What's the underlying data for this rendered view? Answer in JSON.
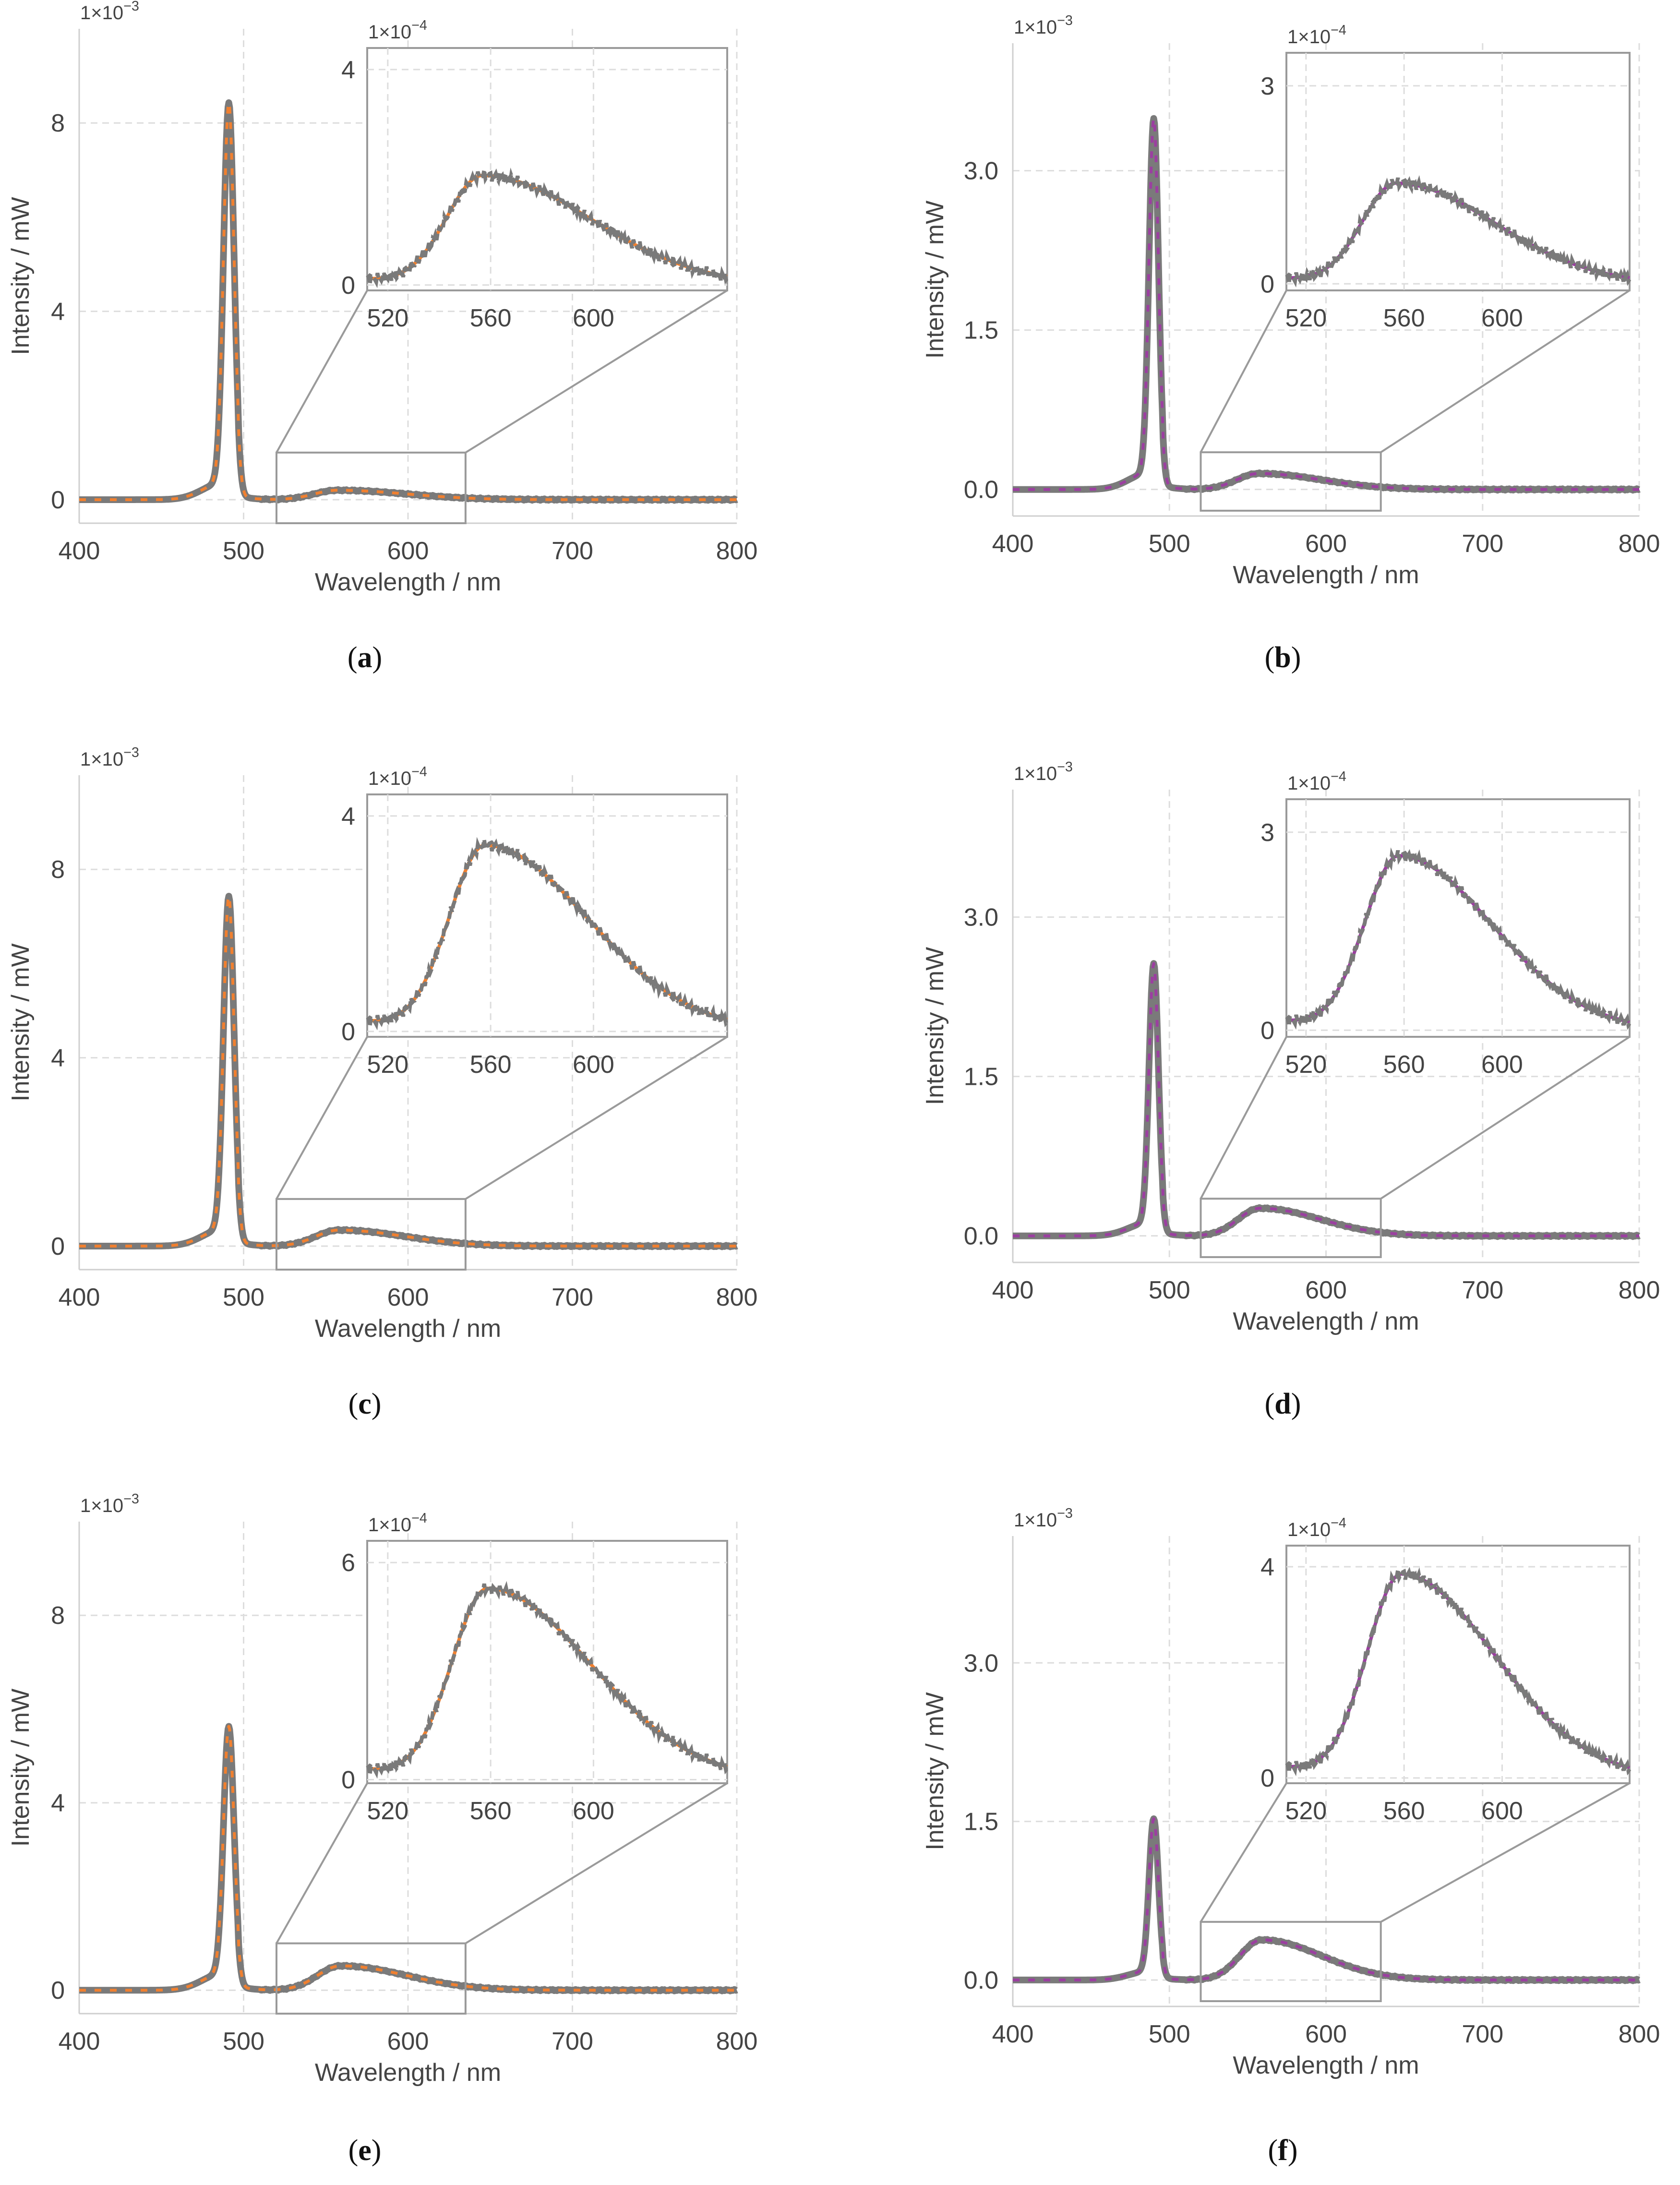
{
  "figure": {
    "colors": {
      "measured": "#7a7a7a",
      "fit_orange": "#f08030",
      "fit_purple": "#9b3fa0",
      "grid": "#dddddd",
      "frame": "#9a9a9a",
      "text": "#444444"
    }
  },
  "chart_data": [
    {
      "id": "a",
      "type": "line",
      "caption_letter": "a",
      "xlabel": "Wavelength / nm",
      "ylabel": "Intensity / mW",
      "y_multiplier": "1×10",
      "y_exponent": "−3",
      "xlim": [
        400,
        800
      ],
      "ylim": [
        -0.5,
        10
      ],
      "xticks": [
        400,
        500,
        600,
        700,
        800
      ],
      "xtick_labels": [
        "400",
        "500",
        "600",
        "700",
        "800"
      ],
      "yticks": [
        0,
        4,
        8
      ],
      "ytick_labels": [
        "0",
        "4",
        "8"
      ],
      "fit_color": "orange",
      "spectrum": {
        "peak_center": 491,
        "peak_height": 8.1,
        "peak_width": 3.2,
        "shoulder_height": 0.35,
        "shoulder_center": 487,
        "shoulder_width": 12,
        "phosphor_height": 0.2,
        "phosphor_center": 557,
        "phosphor_width_left": 14,
        "phosphor_width_right": 42
      },
      "inset": {
        "xlim": [
          512,
          652
        ],
        "ylim": [
          -0.1,
          4.4
        ],
        "xticks": [
          520,
          560,
          600
        ],
        "xtick_labels": [
          "520",
          "560",
          "600"
        ],
        "yticks": [
          0,
          4
        ],
        "ytick_labels": [
          "0",
          "4"
        ],
        "y_multiplier": "1×10",
        "y_exponent": "−4",
        "zoom_x": [
          520,
          635
        ],
        "zoom_y": [
          -0.5,
          1.0
        ],
        "scale_to_main": 0.1
      }
    },
    {
      "id": "b",
      "type": "line",
      "caption_letter": "b",
      "xlabel": "Wavelength / nm",
      "ylabel": "Intensity / mW",
      "y_multiplier": "1×10",
      "y_exponent": "−3",
      "xlim": [
        400,
        800
      ],
      "ylim": [
        -0.25,
        4.2
      ],
      "xticks": [
        400,
        500,
        600,
        700,
        800
      ],
      "xtick_labels": [
        "400",
        "500",
        "600",
        "700",
        "800"
      ],
      "yticks": [
        0.0,
        1.5,
        3.0
      ],
      "ytick_labels": [
        "0.0",
        "1.5",
        "3.0"
      ],
      "fit_color": "purple",
      "spectrum": {
        "peak_center": 490,
        "peak_height": 3.35,
        "peak_width": 3.0,
        "shoulder_height": 0.15,
        "shoulder_center": 486,
        "shoulder_width": 12,
        "phosphor_height": 0.15,
        "phosphor_center": 557,
        "phosphor_width_left": 14,
        "phosphor_width_right": 40
      },
      "inset": {
        "xlim": [
          512,
          652
        ],
        "ylim": [
          -0.1,
          3.5
        ],
        "xticks": [
          520,
          560,
          600
        ],
        "xtick_labels": [
          "520",
          "560",
          "600"
        ],
        "yticks": [
          0,
          3
        ],
        "ytick_labels": [
          "0",
          "3"
        ],
        "y_multiplier": "1×10",
        "y_exponent": "−4",
        "zoom_x": [
          520,
          635
        ],
        "zoom_y": [
          -0.2,
          0.35
        ],
        "scale_to_main": 0.1
      }
    },
    {
      "id": "c",
      "type": "line",
      "caption_letter": "c",
      "xlabel": "Wavelength / nm",
      "ylabel": "Intensity / mW",
      "y_multiplier": "1×10",
      "y_exponent": "−3",
      "xlim": [
        400,
        800
      ],
      "ylim": [
        -0.5,
        10
      ],
      "xticks": [
        400,
        500,
        600,
        700,
        800
      ],
      "xtick_labels": [
        "400",
        "500",
        "600",
        "700",
        "800"
      ],
      "yticks": [
        0,
        4,
        8
      ],
      "ytick_labels": [
        "0",
        "4",
        "8"
      ],
      "fit_color": "orange",
      "spectrum": {
        "peak_center": 491,
        "peak_height": 7.1,
        "peak_width": 3.2,
        "shoulder_height": 0.35,
        "shoulder_center": 487,
        "shoulder_width": 12,
        "phosphor_height": 0.34,
        "phosphor_center": 558,
        "phosphor_width_left": 14,
        "phosphor_width_right": 40
      },
      "inset": {
        "xlim": [
          512,
          652
        ],
        "ylim": [
          -0.1,
          4.4
        ],
        "xticks": [
          520,
          560,
          600
        ],
        "xtick_labels": [
          "520",
          "560",
          "600"
        ],
        "yticks": [
          0,
          4
        ],
        "ytick_labels": [
          "0",
          "4"
        ],
        "y_multiplier": "1×10",
        "y_exponent": "−4",
        "zoom_x": [
          520,
          635
        ],
        "zoom_y": [
          -0.5,
          1.0
        ],
        "scale_to_main": 0.1
      }
    },
    {
      "id": "d",
      "type": "line",
      "caption_letter": "d",
      "xlabel": "Wavelength / nm",
      "ylabel": "Intensity / mW",
      "y_multiplier": "1×10",
      "y_exponent": "−3",
      "xlim": [
        400,
        800
      ],
      "ylim": [
        -0.25,
        4.2
      ],
      "xticks": [
        400,
        500,
        600,
        700,
        800
      ],
      "xtick_labels": [
        "400",
        "500",
        "600",
        "700",
        "800"
      ],
      "yticks": [
        0.0,
        1.5,
        3.0
      ],
      "ytick_labels": [
        "0.0",
        "1.5",
        "3.0"
      ],
      "fit_color": "purple",
      "spectrum": {
        "peak_center": 490,
        "peak_height": 2.45,
        "peak_width": 3.0,
        "shoulder_height": 0.12,
        "shoulder_center": 486,
        "shoulder_width": 12,
        "phosphor_height": 0.26,
        "phosphor_center": 558,
        "phosphor_width_left": 14,
        "phosphor_width_right": 38
      },
      "inset": {
        "xlim": [
          512,
          652
        ],
        "ylim": [
          -0.1,
          3.5
        ],
        "xticks": [
          520,
          560,
          600
        ],
        "xtick_labels": [
          "520",
          "560",
          "600"
        ],
        "yticks": [
          0,
          3
        ],
        "ytick_labels": [
          "0",
          "3"
        ],
        "y_multiplier": "1×10",
        "y_exponent": "−4",
        "zoom_x": [
          520,
          635
        ],
        "zoom_y": [
          -0.2,
          0.35
        ],
        "scale_to_main": 0.1
      }
    },
    {
      "id": "e",
      "type": "line",
      "caption_letter": "e",
      "xlabel": "Wavelength / nm",
      "ylabel": "Intensity / mW",
      "y_multiplier": "1×10",
      "y_exponent": "−3",
      "xlim": [
        400,
        800
      ],
      "ylim": [
        -0.5,
        10
      ],
      "xticks": [
        400,
        500,
        600,
        700,
        800
      ],
      "xtick_labels": [
        "400",
        "500",
        "600",
        "700",
        "800"
      ],
      "yticks": [
        0,
        4,
        8
      ],
      "ytick_labels": [
        "0",
        "4",
        "8"
      ],
      "fit_color": "orange",
      "spectrum": {
        "peak_center": 491,
        "peak_height": 5.3,
        "peak_width": 3.2,
        "shoulder_height": 0.35,
        "shoulder_center": 487,
        "shoulder_width": 12,
        "phosphor_height": 0.52,
        "phosphor_center": 559,
        "phosphor_width_left": 14,
        "phosphor_width_right": 40
      },
      "inset": {
        "xlim": [
          512,
          652
        ],
        "ylim": [
          -0.1,
          6.6
        ],
        "xticks": [
          520,
          560,
          600
        ],
        "xtick_labels": [
          "520",
          "560",
          "600"
        ],
        "yticks": [
          0,
          6
        ],
        "ytick_labels": [
          "0",
          "6"
        ],
        "y_multiplier": "1×10",
        "y_exponent": "−4",
        "zoom_x": [
          520,
          635
        ],
        "zoom_y": [
          -0.5,
          1.0
        ],
        "scale_to_main": 0.1
      }
    },
    {
      "id": "f",
      "type": "line",
      "caption_letter": "f",
      "xlabel": "Wavelength / nm",
      "ylabel": "Intensity / mW",
      "y_multiplier": "1×10",
      "y_exponent": "−3",
      "xlim": [
        400,
        800
      ],
      "ylim": [
        -0.25,
        4.2
      ],
      "xticks": [
        400,
        500,
        600,
        700,
        800
      ],
      "xtick_labels": [
        "400",
        "500",
        "600",
        "700",
        "800"
      ],
      "yticks": [
        0.0,
        1.5,
        3.0
      ],
      "ytick_labels": [
        "0.0",
        "1.5",
        "3.0"
      ],
      "fit_color": "purple",
      "spectrum": {
        "peak_center": 490,
        "peak_height": 1.45,
        "peak_width": 3.0,
        "shoulder_height": 0.08,
        "shoulder_center": 486,
        "shoulder_width": 12,
        "phosphor_height": 0.38,
        "phosphor_center": 559,
        "phosphor_width_left": 14,
        "phosphor_width_right": 38
      },
      "inset": {
        "xlim": [
          512,
          652
        ],
        "ylim": [
          -0.1,
          4.4
        ],
        "xticks": [
          520,
          560,
          600
        ],
        "xtick_labels": [
          "520",
          "560",
          "600"
        ],
        "yticks": [
          0,
          4
        ],
        "ytick_labels": [
          "0",
          "4"
        ],
        "y_multiplier": "1×10",
        "y_exponent": "−4",
        "zoom_x": [
          520,
          635
        ],
        "zoom_y": [
          -0.2,
          0.55
        ],
        "scale_to_main": 0.1
      }
    }
  ]
}
